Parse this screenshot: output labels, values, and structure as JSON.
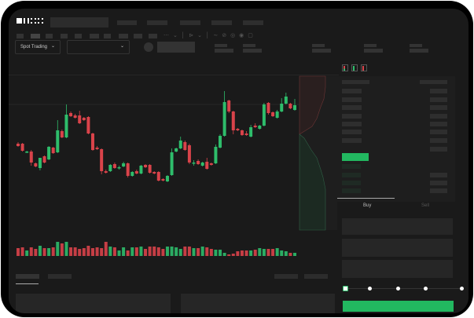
{
  "header": {
    "logo_text": "OKX"
  },
  "toolbar": {
    "market_selector": "Spot Trading",
    "chevron": "⌄"
  },
  "order_form": {
    "tabs": [
      "Buy",
      "Sell"
    ],
    "active_tab": "Buy",
    "slider_percent": 0
  },
  "colors": {
    "up": "#2ebd6b",
    "down": "#d9434a",
    "background": "#1a1a1a",
    "accent": "#22c55e"
  },
  "chart_data": {
    "type": "candlestick",
    "candles": [
      [
        68,
        70,
        64,
        65
      ],
      [
        68,
        69,
        58,
        59
      ],
      [
        57,
        59,
        56,
        58
      ],
      [
        58,
        60,
        40,
        44
      ],
      [
        43,
        44,
        38,
        39
      ],
      [
        37,
        50,
        34,
        50
      ],
      [
        52,
        53,
        43,
        44
      ],
      [
        48,
        65,
        47,
        64
      ],
      [
        63,
        64,
        55,
        56
      ],
      [
        57,
        98,
        56,
        85
      ],
      [
        84,
        86,
        75,
        76
      ],
      [
        76,
        118,
        75,
        105
      ],
      [
        107,
        109,
        102,
        103
      ],
      [
        104,
        106,
        100,
        101
      ],
      [
        104,
        110,
        93,
        94
      ],
      [
        101,
        102,
        97,
        98
      ],
      [
        102,
        103,
        80,
        81
      ],
      [
        81,
        82,
        59,
        60
      ],
      [
        63,
        65,
        60,
        61
      ],
      [
        61,
        62,
        29,
        33
      ],
      [
        33,
        35,
        30,
        31
      ],
      [
        33,
        42,
        32,
        41
      ],
      [
        42,
        44,
        36,
        37
      ],
      [
        37,
        40,
        35,
        38
      ],
      [
        39,
        45,
        38,
        43
      ],
      [
        43,
        44,
        25,
        27
      ],
      [
        27,
        33,
        26,
        32
      ],
      [
        33,
        35,
        29,
        30
      ],
      [
        30,
        41,
        29,
        40
      ],
      [
        41,
        42,
        37,
        38
      ],
      [
        41,
        42,
        30,
        31
      ],
      [
        32,
        33,
        29,
        30
      ],
      [
        32,
        33,
        20,
        21
      ],
      [
        23,
        24,
        20,
        21
      ],
      [
        20,
        28,
        19,
        27
      ],
      [
        28,
        62,
        27,
        57
      ],
      [
        58,
        63,
        57,
        62
      ],
      [
        62,
        77,
        61,
        72
      ],
      [
        70,
        72,
        59,
        60
      ],
      [
        66,
        68,
        42,
        44
      ],
      [
        43,
        47,
        40,
        44
      ],
      [
        46,
        48,
        41,
        42
      ],
      [
        40,
        45,
        39,
        44
      ],
      [
        45,
        50,
        35,
        36
      ],
      [
        43,
        44,
        40,
        41
      ],
      [
        43,
        67,
        42,
        64
      ],
      [
        63,
        80,
        62,
        78
      ],
      [
        78,
        135,
        77,
        121
      ],
      [
        123,
        124,
        107,
        109
      ],
      [
        109,
        110,
        80,
        85
      ],
      [
        87,
        88,
        84,
        85
      ],
      [
        85,
        86,
        78,
        79
      ],
      [
        81,
        84,
        78,
        79
      ],
      [
        77,
        92,
        76,
        89
      ],
      [
        91,
        94,
        88,
        89
      ],
      [
        87,
        92,
        86,
        91
      ],
      [
        91,
        120,
        90,
        118
      ],
      [
        120,
        121,
        105,
        107
      ],
      [
        108,
        109,
        102,
        103
      ],
      [
        101,
        111,
        100,
        109
      ],
      [
        109,
        126,
        108,
        119
      ],
      [
        119,
        133,
        118,
        128
      ],
      [
        119,
        120,
        112,
        113
      ],
      [
        111,
        125,
        110,
        117
      ]
    ],
    "volume": [
      10,
      11,
      7,
      11,
      9,
      13,
      10,
      10,
      11,
      18,
      16,
      18,
      11,
      11,
      9,
      10,
      13,
      10,
      11,
      10,
      18,
      12,
      11,
      7,
      11,
      7,
      11,
      11,
      12,
      9,
      12,
      12,
      11,
      9,
      12,
      12,
      11,
      9,
      12,
      12,
      10,
      10,
      12,
      11,
      9,
      8,
      8,
      4,
      2,
      3,
      6,
      7,
      7,
      7,
      8,
      10,
      9,
      9,
      9,
      10,
      7,
      6,
      4,
      4
    ],
    "grid": false
  }
}
